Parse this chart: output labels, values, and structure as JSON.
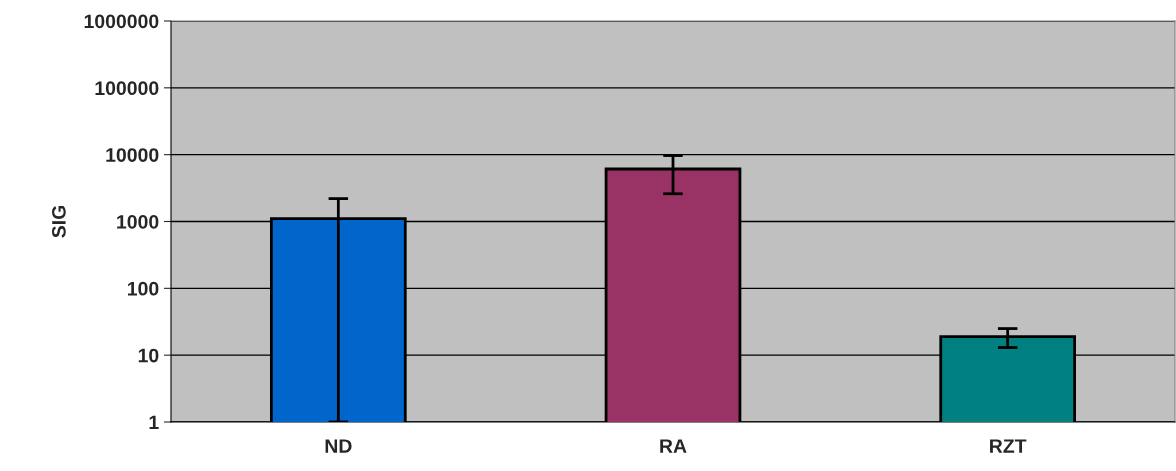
{
  "chart_data": {
    "type": "bar",
    "ylabel": "SIG",
    "categories": [
      "ND",
      "RA",
      "RZT"
    ],
    "values": [
      1100,
      6100,
      19
    ],
    "colors": [
      "#0066cc",
      "#993366",
      "#008080"
    ],
    "errors": [
      [
        1099,
        1100
      ],
      [
        3500,
        3600
      ],
      6
    ],
    "log": true,
    "ylim": [
      1,
      1000000
    ],
    "yticks": [
      1,
      10,
      100,
      1000,
      10000,
      100000,
      1000000
    ],
    "grid": "y"
  }
}
